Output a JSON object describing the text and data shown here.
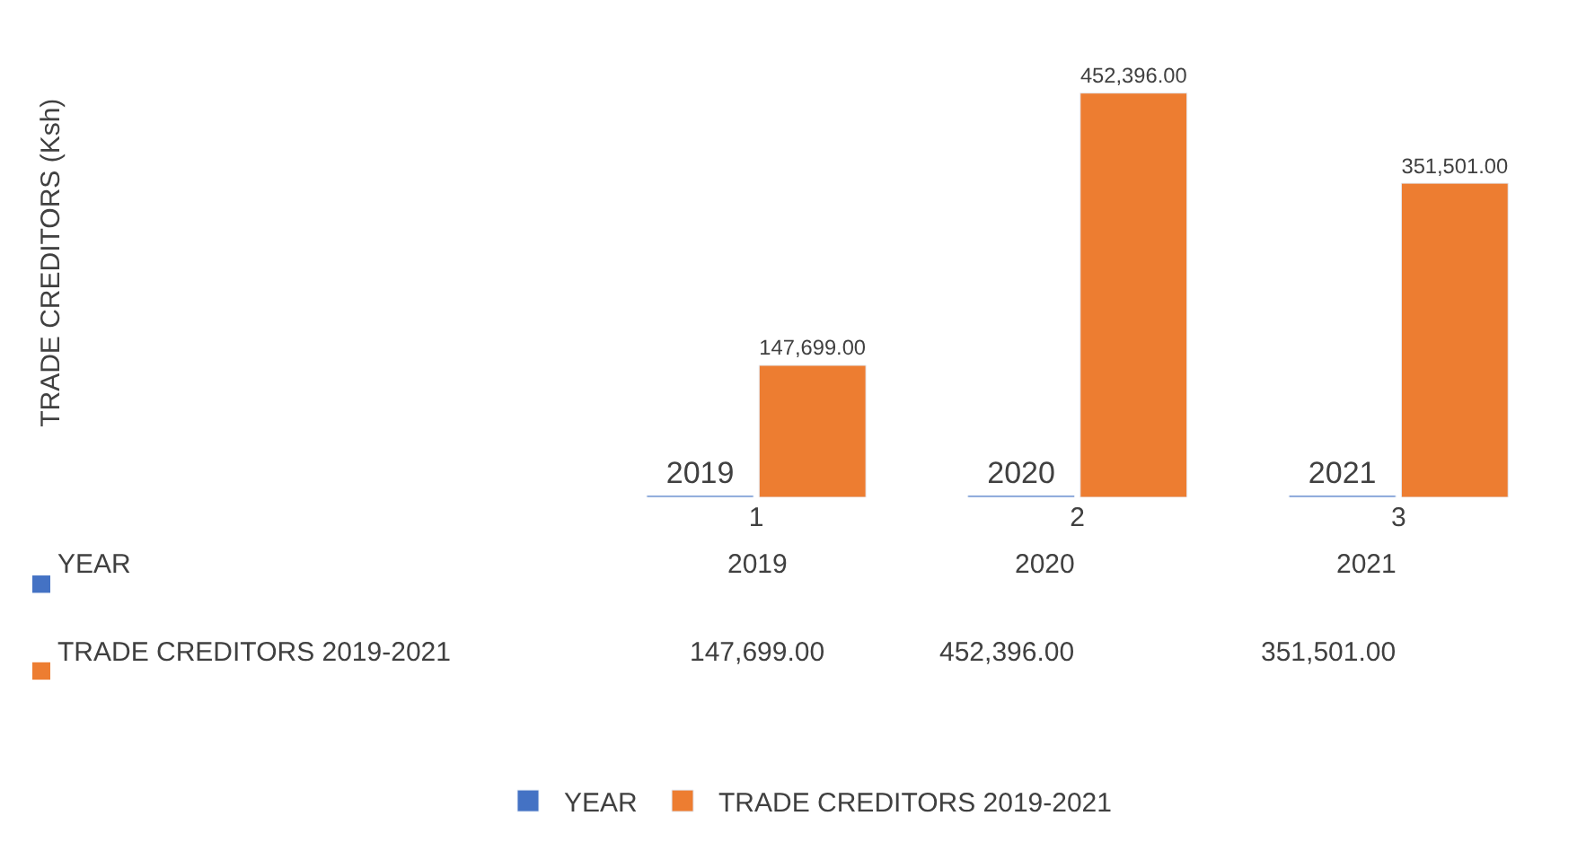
{
  "chart_data": {
    "type": "bar",
    "annotations": [
      "TRADE CREDITORS (Ksh)"
    ],
    "categories": [
      "1",
      "2",
      "3"
    ],
    "series": [
      {
        "name": "YEAR",
        "color": "#4472c4",
        "values": [
          2019,
          2020,
          2021
        ],
        "value_labels": [
          "2019",
          "2020",
          "2021"
        ]
      },
      {
        "name": "TRADE CREDITORS 2019-2021",
        "color": "#ed7d31",
        "values": [
          147699,
          452396,
          351501
        ],
        "value_labels": [
          "147,699.00",
          "452,396.00",
          "351,501.00"
        ]
      }
    ],
    "legend": "bottom"
  }
}
